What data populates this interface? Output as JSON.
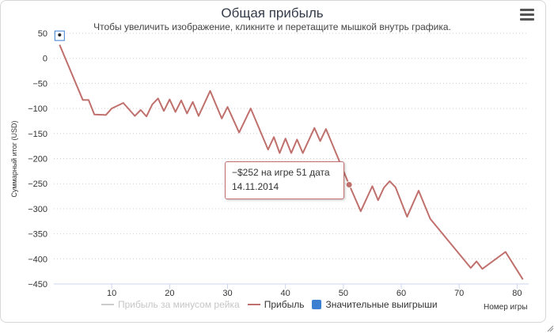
{
  "title": "Общая прибыль",
  "subtitle": "Чтобы увеличить изображение, кликните и перетащите мышкой внутрь графика.",
  "menu_icon": "hamburger-menu-icon",
  "tooltip": {
    "line1": "−$252 на игре 51 дата",
    "line2": "14.11.2014"
  },
  "chart_data": {
    "type": "line",
    "title": "Общая прибыль",
    "xlabel": "Номер игры",
    "ylabel": "Суммарный итог (USD)",
    "xlim": [
      0,
      82
    ],
    "ylim": [
      -450,
      50
    ],
    "x_ticks": [
      10,
      20,
      30,
      40,
      50,
      60,
      70,
      80
    ],
    "y_ticks": [
      50,
      0,
      -50,
      -100,
      -150,
      -200,
      -250,
      -300,
      -350,
      -400,
      -450
    ],
    "y_tick_labels": [
      "50",
      "0",
      "−50",
      "−100",
      "−150",
      "−200",
      "−250",
      "−300",
      "−350",
      "−400",
      "−450"
    ],
    "grid": "horizontal-dotted",
    "legend_position": "bottom",
    "legend": [
      {
        "name": "Прибыль за минусом рейка",
        "color": "#cccccc",
        "type": "line",
        "visible": false
      },
      {
        "name": "Прибыль",
        "color": "#c0706c",
        "type": "line",
        "visible": true
      },
      {
        "name": "Значительные выигрыши",
        "color": "#3a7fd0",
        "type": "box",
        "visible": true
      }
    ],
    "series": [
      {
        "name": "Прибыль",
        "color": "#c0706c",
        "x": [
          1,
          5,
          6,
          7,
          9,
          10,
          12,
          14,
          15,
          16,
          17,
          18,
          19,
          20,
          21,
          22,
          23,
          24,
          25,
          27,
          29,
          30,
          32,
          34,
          37,
          38,
          39,
          40,
          41,
          42,
          43,
          45,
          46,
          47,
          51,
          53,
          55,
          56,
          57,
          58,
          59,
          61,
          63,
          65,
          72,
          73,
          74,
          78,
          81
        ],
        "y": [
          27,
          -83,
          -83,
          -112,
          -113,
          -100,
          -89,
          -115,
          -103,
          -116,
          -92,
          -80,
          -105,
          -82,
          -107,
          -84,
          -110,
          -87,
          -115,
          -65,
          -120,
          -97,
          -148,
          -100,
          -182,
          -157,
          -189,
          -160,
          -189,
          -162,
          -189,
          -139,
          -165,
          -141,
          -252,
          -305,
          -255,
          -283,
          -258,
          -245,
          -257,
          -316,
          -264,
          -320,
          -418,
          -405,
          -420,
          -386,
          -441
        ]
      }
    ],
    "highlight_point": {
      "x": 51,
      "y": -252
    },
    "marker_point": {
      "x": 1,
      "y": 45
    }
  }
}
